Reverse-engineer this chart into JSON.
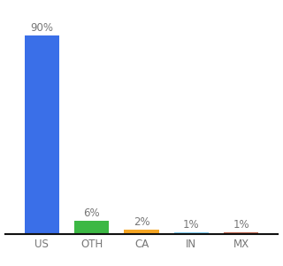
{
  "categories": [
    "US",
    "OTH",
    "CA",
    "IN",
    "MX"
  ],
  "values": [
    90,
    6,
    2,
    1,
    1
  ],
  "labels": [
    "90%",
    "6%",
    "2%",
    "1%",
    "1%"
  ],
  "bar_colors": [
    "#3a6fe8",
    "#3cb844",
    "#f5a623",
    "#7ecef4",
    "#c0634a"
  ],
  "background_color": "#ffffff",
  "ylim": [
    0,
    100
  ],
  "label_fontsize": 8.5,
  "tick_fontsize": 8.5,
  "bar_width": 0.7
}
